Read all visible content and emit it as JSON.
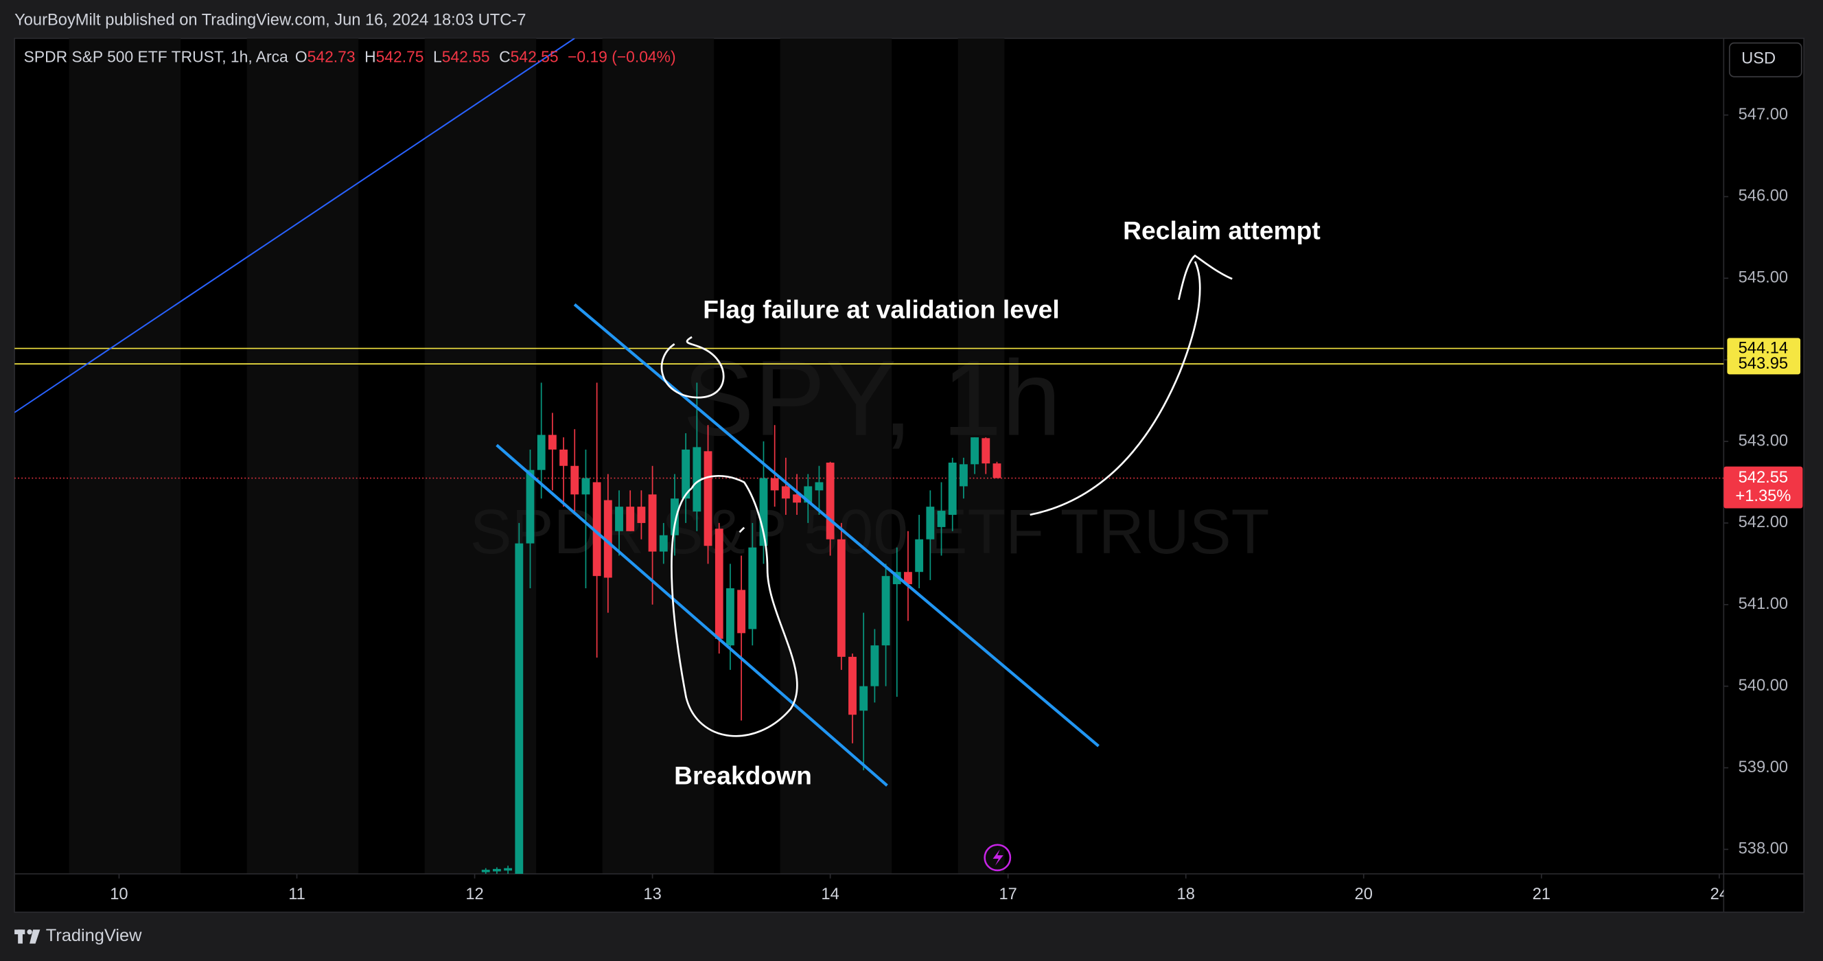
{
  "header": {
    "publisher": "YourBoyMilt published on TradingView.com, Jun 16, 2024 18:03 UTC-7",
    "brand": "TradingView"
  },
  "chart_data": {
    "type": "candlestick",
    "symbol_label": "SPDR S&P 500 ETF TRUST, 1h, Arca",
    "ohlc_prefixes": [
      "O",
      "H",
      "L",
      "C"
    ],
    "change_label": "−0.19 (−0.04%)",
    "currency": "USD",
    "watermark": [
      "SPY, 1h",
      "SPDR S&P 500 ETF TRUST"
    ],
    "annotations": [
      "Flag failure at validation level",
      "Breakdown",
      "Reclaim attempt"
    ],
    "up_color": "#089981",
    "down_color": "#f23645",
    "x": [
      33,
      34,
      35,
      36,
      37,
      38,
      39,
      40,
      41,
      42,
      43,
      44,
      45,
      46,
      47,
      48,
      49,
      50,
      51,
      52,
      53,
      54,
      55,
      56,
      57,
      58,
      59,
      60,
      61,
      62,
      63,
      64,
      65,
      66,
      67,
      68,
      69,
      70,
      71,
      72,
      73,
      74,
      75,
      76,
      77,
      78,
      79
    ],
    "open": [
      537.72,
      537.73,
      537.74,
      537.6,
      541.75,
      542.65,
      543.08,
      542.9,
      542.7,
      542.35,
      542.5,
      542.28,
      541.9,
      542.2,
      542.2,
      542.35,
      541.65,
      541.85,
      542.3,
      542.14,
      542.88,
      541.93,
      540.5,
      541.18,
      540.7,
      541.72,
      542.55,
      542.45,
      542.35,
      542.25,
      542.4,
      542.74,
      541.8,
      540.36,
      539.7,
      540.0,
      540.5,
      541.25,
      541.4,
      541.4,
      541.8,
      541.95,
      542.1,
      542.45,
      542.72,
      543.04,
      542.73
    ],
    "high": [
      537.77,
      537.78,
      537.8,
      542.0,
      542.9,
      543.72,
      543.35,
      543.05,
      543.15,
      542.9,
      543.72,
      542.6,
      542.4,
      542.4,
      542.4,
      542.7,
      542.0,
      542.6,
      543.1,
      543.72,
      543.2,
      542.0,
      541.5,
      541.6,
      542.0,
      543.0,
      543.2,
      542.8,
      542.6,
      542.6,
      542.7,
      542.75,
      542.0,
      540.4,
      540.9,
      540.7,
      541.5,
      541.7,
      541.9,
      542.1,
      542.4,
      542.5,
      542.8,
      542.8,
      543.05,
      543.05,
      542.75
    ],
    "low": [
      537.7,
      537.7,
      537.7,
      537.5,
      541.2,
      542.3,
      542.4,
      542.2,
      542.1,
      541.2,
      540.35,
      540.9,
      541.6,
      541.9,
      541.8,
      541.0,
      541.5,
      541.6,
      542.0,
      541.9,
      541.5,
      540.4,
      540.2,
      539.58,
      540.5,
      541.5,
      542.2,
      542.1,
      542.1,
      542.0,
      542.1,
      541.6,
      540.2,
      539.3,
      538.97,
      539.8,
      540.0,
      539.87,
      540.8,
      541.2,
      541.3,
      541.6,
      541.9,
      542.3,
      542.6,
      542.6,
      542.55
    ],
    "close": [
      537.75,
      537.76,
      537.77,
      541.75,
      542.65,
      543.08,
      542.9,
      542.7,
      542.35,
      542.55,
      541.35,
      541.33,
      542.2,
      541.9,
      542.0,
      541.65,
      541.85,
      542.3,
      542.9,
      542.93,
      541.72,
      540.58,
      541.2,
      540.65,
      541.7,
      542.55,
      542.4,
      542.3,
      542.25,
      542.45,
      542.5,
      541.8,
      540.36,
      539.65,
      540.0,
      540.5,
      541.35,
      541.4,
      541.25,
      541.8,
      542.2,
      542.15,
      542.74,
      542.72,
      543.05,
      542.73,
      542.55
    ],
    "xlim": [
      -9.41,
      144.4
    ],
    "ylim": [
      537.7,
      547.94
    ],
    "xticks": [
      {
        "value": 0,
        "label": "10"
      },
      {
        "value": 16,
        "label": "11"
      },
      {
        "value": 32,
        "label": "12"
      },
      {
        "value": 48,
        "label": "13"
      },
      {
        "value": 64,
        "label": "14"
      },
      {
        "value": 80,
        "label": "17"
      },
      {
        "value": 96,
        "label": "18"
      },
      {
        "value": 112,
        "label": "20"
      },
      {
        "value": 128,
        "label": "21"
      },
      {
        "value": 144,
        "label": "24"
      }
    ],
    "yticks": [
      {
        "value": 538,
        "label": "538.00"
      },
      {
        "value": 539,
        "label": "539.00"
      },
      {
        "value": 540,
        "label": "540.00"
      },
      {
        "value": 541,
        "label": "541.00"
      },
      {
        "value": 542,
        "label": "542.00"
      },
      {
        "value": 543,
        "label": "543.00"
      },
      {
        "value": 544,
        "label": "544.00"
      },
      {
        "value": 545,
        "label": "545.00"
      },
      {
        "value": 546,
        "label": "546.00"
      },
      {
        "value": 547,
        "label": "547.00"
      }
    ],
    "hidden_ytick_labels": [
      544
    ],
    "horizontal_lines": [
      {
        "value": 544.14,
        "color": "#f5e642"
      },
      {
        "value": 543.95,
        "color": "#f5e642"
      }
    ],
    "last_price": 542.55,
    "last_price_change_label": "+1.35%"
  }
}
